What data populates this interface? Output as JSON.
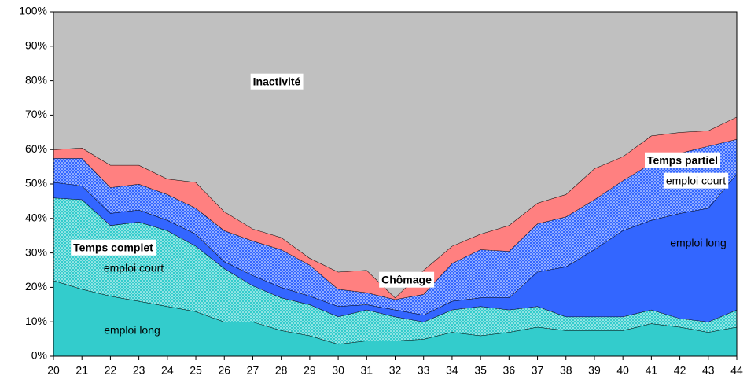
{
  "chart_data": {
    "type": "stacked_area",
    "x": [
      20,
      21,
      22,
      23,
      24,
      25,
      26,
      27,
      28,
      29,
      30,
      31,
      32,
      33,
      34,
      35,
      36,
      37,
      38,
      39,
      40,
      41,
      42,
      43,
      44
    ],
    "xlim": [
      20,
      44
    ],
    "ylim": [
      0,
      100
    ],
    "yticks": [
      {
        "value": 0,
        "label": "0%"
      },
      {
        "value": 10,
        "label": "10%"
      },
      {
        "value": 20,
        "label": "20%"
      },
      {
        "value": 30,
        "label": "30%"
      },
      {
        "value": 40,
        "label": "40%"
      },
      {
        "value": 50,
        "label": "50%"
      },
      {
        "value": 60,
        "label": "60%"
      },
      {
        "value": 70,
        "label": "70%"
      },
      {
        "value": 80,
        "label": "80%"
      },
      {
        "value": 90,
        "label": "90%"
      },
      {
        "value": 100,
        "label": "100%"
      }
    ],
    "series": [
      {
        "name": "emploi long",
        "color": "#33cccc",
        "values": [
          22,
          19.5,
          17.5,
          16,
          14.5,
          13,
          10,
          10,
          7.5,
          6,
          3.5,
          4.5,
          4.5,
          5,
          7,
          6,
          7,
          8.5,
          7.5,
          7.5,
          7.5,
          9.5,
          8.5,
          7,
          8.5
        ]
      },
      {
        "name": "emploi court",
        "color": "#33cccc",
        "pattern": "dots",
        "values": [
          24,
          26,
          20.5,
          23,
          22,
          19,
          15.5,
          10.5,
          9.5,
          9,
          8,
          9,
          7,
          5,
          6.5,
          8.5,
          6.5,
          6,
          4,
          4,
          4,
          4,
          2.5,
          3,
          5
        ]
      },
      {
        "name": "emploi long",
        "color": "#3366ff",
        "values": [
          4.5,
          4,
          3.5,
          3.5,
          3,
          3.5,
          2,
          3,
          3,
          2.5,
          3,
          1.5,
          2,
          2,
          2.5,
          2.5,
          3.5,
          10,
          14.5,
          19.5,
          25,
          26,
          30.5,
          33,
          39.5
        ]
      },
      {
        "name": "emploi court",
        "color": "#3366ff",
        "pattern": "dots",
        "values": [
          7,
          8,
          7.5,
          7.5,
          7.5,
          7.5,
          9,
          10,
          11,
          9,
          5,
          3.5,
          3,
          6,
          11,
          14,
          13.5,
          14,
          14.5,
          14.5,
          14.5,
          16.5,
          17.5,
          18,
          10
        ]
      },
      {
        "name": "Chômage",
        "color": "#ff8080",
        "values": [
          2.5,
          3,
          6.5,
          5.5,
          4.5,
          7.5,
          5.5,
          3.5,
          3.5,
          2,
          5,
          6.5,
          0.5,
          7,
          5,
          4.5,
          7.5,
          6,
          6.5,
          9,
          7,
          8,
          6,
          4.5,
          6.5
        ]
      },
      {
        "name": "Inactivité",
        "color": "#c0c0c0",
        "values": [
          40,
          39.5,
          44.5,
          44.5,
          48.5,
          49.5,
          58,
          63,
          65.5,
          71.5,
          75.5,
          75,
          83,
          75,
          68,
          64.5,
          62,
          55.5,
          53,
          45.5,
          42,
          36,
          35,
          34.5,
          30.5
        ]
      }
    ],
    "annotations": [
      "Temps complet",
      "Temps partiel"
    ]
  }
}
